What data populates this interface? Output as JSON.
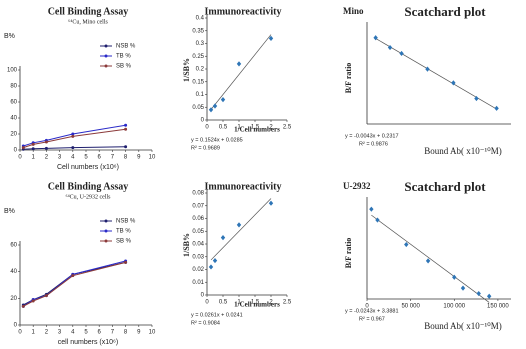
{
  "chart_data": [
    {
      "type": "line",
      "title": "Cell Binding Assay",
      "subtitle": "⁶⁴Cu, Mino cells",
      "ylabel": "B%",
      "xlabel": "Cell numbers (x10⁶)",
      "x": [
        0.25,
        1,
        2,
        4,
        8
      ],
      "xlim": [
        0,
        10
      ],
      "xticks": [
        0,
        1,
        2,
        3,
        4,
        5,
        6,
        7,
        8,
        9,
        10
      ],
      "ylim": [
        0,
        100
      ],
      "yticks": [
        0,
        20,
        40,
        60,
        80,
        100
      ],
      "legend": "upper right",
      "series": [
        {
          "name": "NSB %",
          "color": "#1f1f6e",
          "values": [
            1,
            1.5,
            2,
            3,
            4
          ]
        },
        {
          "name": "TB %",
          "color": "#2a2ac8",
          "values": [
            5,
            9,
            12,
            20,
            31
          ]
        },
        {
          "name": "SB %",
          "color": "#8b3a3a",
          "values": [
            3,
            7,
            10,
            17,
            26
          ]
        }
      ]
    },
    {
      "type": "scatter",
      "title": "Immunoreactivity",
      "ylabel": "1/SB%",
      "xlabel": "1/Cell numbers",
      "x": [
        0.125,
        0.25,
        0.5,
        1,
        2
      ],
      "values": [
        0.04,
        0.055,
        0.08,
        0.22,
        0.32
      ],
      "color": "#2e75b6",
      "xlim": [
        0,
        2.5
      ],
      "xticks": [
        0,
        0.5,
        1,
        1.5,
        2,
        2.5
      ],
      "ylim": [
        0,
        0.4
      ],
      "yticks": [
        0,
        0.05,
        0.1,
        0.15,
        0.2,
        0.25,
        0.3,
        0.35,
        0.4
      ],
      "equation": "y = 0.1524x + 0.0285",
      "r_squared": "R² = 0.9689"
    },
    {
      "type": "scatter",
      "corner_label": "Mino",
      "title": "Scatchard plot",
      "ylabel": "B/F ratio",
      "xlabel": "Bound Ab( x10⁻¹⁰M)",
      "x": [
        3,
        8,
        12,
        21,
        30,
        38,
        45
      ],
      "values": [
        0.22,
        0.195,
        0.18,
        0.14,
        0.105,
        0.065,
        0.04
      ],
      "color": "#2e75b6",
      "xlim": [
        0,
        50
      ],
      "ylim": [
        0,
        0.25
      ],
      "equation": "y = -0.0043x + 0.2317",
      "r_squared": "R² = 0.9876"
    },
    {
      "type": "line",
      "title": "Cell Binding Assay",
      "subtitle": "⁶⁴Cu, U-2932 cells",
      "ylabel": "B%",
      "xlabel": "cell numbers (x10⁶)",
      "x": [
        0.25,
        1,
        2,
        4,
        8
      ],
      "xlim": [
        0,
        10
      ],
      "xticks": [
        0,
        1,
        2,
        3,
        4,
        5,
        6,
        7,
        8,
        9,
        10
      ],
      "ylim": [
        0,
        60
      ],
      "yticks": [
        0,
        20,
        40,
        60
      ],
      "legend": "upper right",
      "series": [
        {
          "name": "NSB %",
          "color": "#1f1f6e",
          "values": [
            15,
            19,
            23,
            38,
            47
          ]
        },
        {
          "name": "TB %",
          "color": "#2a2ac8",
          "values": [
            14,
            19,
            22,
            38,
            48
          ]
        },
        {
          "name": "SB %",
          "color": "#8b3a3a",
          "values": [
            14,
            18,
            22,
            37,
            47
          ]
        }
      ]
    },
    {
      "type": "scatter",
      "title": "Immunoreactivity",
      "ylabel": "1/SB%",
      "xlabel": "1/Cell numbers",
      "x": [
        0.125,
        0.25,
        0.5,
        1,
        2
      ],
      "values": [
        0.022,
        0.027,
        0.045,
        0.055,
        0.072
      ],
      "color": "#2e75b6",
      "xlim": [
        0,
        2.5
      ],
      "xticks": [
        0,
        0.5,
        1,
        1.5,
        2,
        2.5
      ],
      "ylim": [
        0,
        0.08
      ],
      "yticks": [
        0,
        0.01,
        0.02,
        0.03,
        0.04,
        0.05,
        0.06,
        0.07,
        0.08
      ],
      "equation": "y = 0.0261x + 0.0241",
      "r_squared": "R² = 0.9084"
    },
    {
      "type": "scatter",
      "corner_label": "U-2932",
      "title": "Scatchard plot",
      "ylabel": "B/F ratio",
      "xlabel": "Bound Ab( x10⁻¹⁰M)",
      "x": [
        5000,
        12000,
        45000,
        70000,
        100000,
        110000,
        128000,
        140000
      ],
      "values": [
        3.3,
        2.9,
        2.0,
        1.4,
        0.8,
        0.4,
        0.2,
        0.1
      ],
      "color": "#2e75b6",
      "xlim": [
        0,
        165000
      ],
      "xticks": [
        0,
        {
          "value": 50000,
          "label": "50 000"
        },
        {
          "value": 100000,
          "label": "100 000"
        },
        {
          "value": 150000,
          "label": "150 000"
        }
      ],
      "ylim": [
        0,
        3.6
      ],
      "equation": "y = -0.0243x + 3.3881",
      "r_squared": "R² = 0.967"
    }
  ]
}
